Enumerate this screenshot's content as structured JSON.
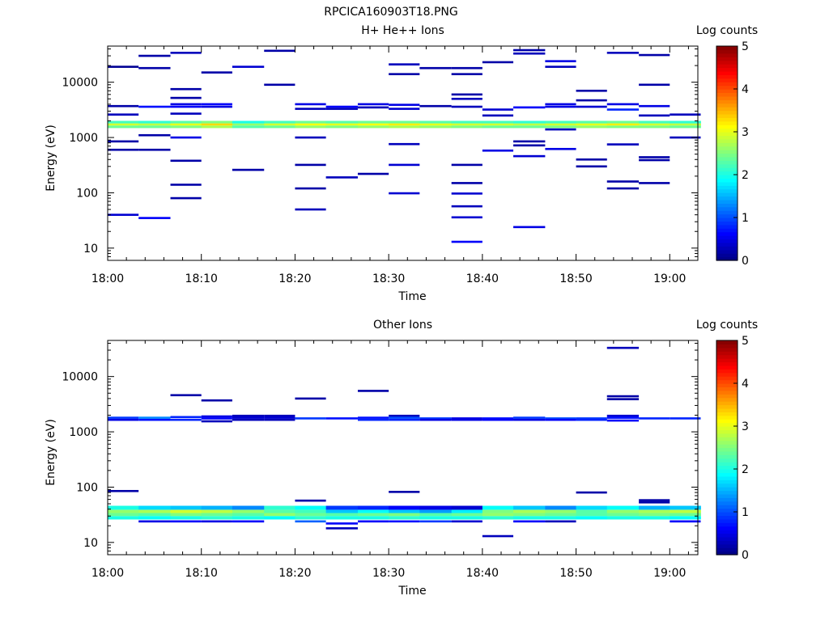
{
  "figure_title": "RPCICA160903T18.PNG",
  "colormap": [
    "#00007f",
    "#0000ff",
    "#007fff",
    "#00ffff",
    "#7fff7f",
    "#ffff00",
    "#ff7f00",
    "#ff0000",
    "#7f0000"
  ],
  "chart_data": [
    {
      "type": "heatmap",
      "title": "H+ He++ Ions",
      "xlabel": "Time",
      "ylabel": "Energy (eV)",
      "colorbar_label": "Log counts",
      "colorbar_range": [
        0,
        5
      ],
      "colorbar_ticks": [
        "0",
        "1",
        "2",
        "3",
        "4",
        "5"
      ],
      "x_range_min": [
        0,
        63
      ],
      "x_ticks_min": [
        0,
        10,
        20,
        30,
        40,
        50,
        60
      ],
      "x_tick_labels": [
        "18:00",
        "18:10",
        "18:20",
        "18:30",
        "18:40",
        "18:50",
        "19:00"
      ],
      "y_scale": "log",
      "y_range": [
        6,
        45000
      ],
      "y_ticks": [
        10,
        100,
        1000,
        10000
      ],
      "y_tick_labels": [
        "10",
        "100",
        "1000",
        "10000"
      ],
      "time_bins_min": [
        [
          0,
          3.3
        ],
        [
          3.3,
          6.7
        ],
        [
          6.7,
          10
        ],
        [
          10,
          13.3
        ],
        [
          13.3,
          16.7
        ],
        [
          16.7,
          20
        ],
        [
          20,
          23.3
        ],
        [
          23.3,
          26.7
        ],
        [
          26.7,
          30
        ],
        [
          30,
          33.3
        ],
        [
          33.3,
          36.7
        ],
        [
          36.7,
          40
        ],
        [
          40,
          43.3
        ],
        [
          43.3,
          46.7
        ],
        [
          46.7,
          50
        ],
        [
          50,
          53.3
        ],
        [
          53.3,
          56.7
        ],
        [
          56.7,
          60
        ],
        [
          60,
          63.3
        ]
      ],
      "band": {
        "e_low": 1480,
        "e_high": 2000,
        "rows": [
          {
            "e_low": 1480,
            "e_high": 1650,
            "values": [
              2.4,
              2.4,
              2.5,
              2.7,
              2.3,
              2.4,
              2.6,
              2.5,
              2.6,
              2.7,
              2.6,
              2.5,
              2.4,
              2.4,
              2.5,
              2.6,
              2.5,
              2.5,
              2.4
            ]
          },
          {
            "e_low": 1650,
            "e_high": 1800,
            "values": [
              2.9,
              2.8,
              3.0,
              3.3,
              2.6,
              2.9,
              3.1,
              3.0,
              3.1,
              3.2,
              3.0,
              2.9,
              2.9,
              2.8,
              2.9,
              3.0,
              3.2,
              2.9,
              2.8
            ]
          },
          {
            "e_low": 1800,
            "e_high": 2000,
            "values": [
              2.2,
              2.1,
              2.3,
              2.5,
              2.0,
              2.2,
              2.4,
              2.3,
              2.4,
              2.4,
              2.3,
              2.2,
              2.2,
              2.1,
              2.2,
              2.3,
              2.4,
              2.2,
              2.1
            ]
          }
        ]
      },
      "cells": [
        [
          0,
          19000,
          0.1
        ],
        [
          0,
          3700,
          0.2
        ],
        [
          0,
          2600,
          0.3
        ],
        [
          0,
          850,
          0.2
        ],
        [
          0,
          600,
          0.2
        ],
        [
          0,
          40,
          0.4
        ],
        [
          1,
          30000,
          0.2
        ],
        [
          1,
          18000,
          0.2
        ],
        [
          1,
          3600,
          0.7
        ],
        [
          1,
          1100,
          0.2
        ],
        [
          1,
          600,
          0.2
        ],
        [
          1,
          35,
          0.6
        ],
        [
          2,
          34000,
          0.3
        ],
        [
          2,
          7500,
          0.2
        ],
        [
          2,
          5200,
          0.2
        ],
        [
          2,
          4000,
          0.5
        ],
        [
          2,
          3600,
          0.6
        ],
        [
          2,
          2700,
          0.3
        ],
        [
          2,
          1000,
          0.5
        ],
        [
          2,
          380,
          0.2
        ],
        [
          2,
          140,
          0.2
        ],
        [
          2,
          80,
          0.2
        ],
        [
          3,
          15000,
          0.2
        ],
        [
          3,
          4000,
          0.6
        ],
        [
          3,
          3600,
          0.5
        ],
        [
          4,
          19000,
          0.4
        ],
        [
          4,
          260,
          0.2
        ],
        [
          5,
          37000,
          0.2
        ],
        [
          5,
          9000,
          0.2
        ],
        [
          6,
          4000,
          0.5
        ],
        [
          6,
          3300,
          0.3
        ],
        [
          6,
          1000,
          0.3
        ],
        [
          6,
          320,
          0.2
        ],
        [
          6,
          120,
          0.2
        ],
        [
          6,
          50,
          0.3
        ],
        [
          7,
          3600,
          0.6
        ],
        [
          7,
          3300,
          0.3
        ],
        [
          7,
          190,
          0.3
        ],
        [
          8,
          4000,
          0.5
        ],
        [
          8,
          3500,
          0.3
        ],
        [
          8,
          220,
          0.2
        ],
        [
          9,
          21000,
          0.3
        ],
        [
          9,
          14000,
          0.2
        ],
        [
          9,
          3900,
          0.5
        ],
        [
          9,
          3300,
          0.4
        ],
        [
          9,
          760,
          0.3
        ],
        [
          9,
          320,
          0.4
        ],
        [
          9,
          98,
          0.4
        ],
        [
          10,
          18000,
          0.2
        ],
        [
          10,
          3700,
          0.2
        ],
        [
          11,
          18000,
          0.2
        ],
        [
          11,
          14000,
          0.2
        ],
        [
          11,
          6000,
          0.2
        ],
        [
          11,
          5000,
          0.3
        ],
        [
          11,
          3600,
          0.3
        ],
        [
          11,
          320,
          0.2
        ],
        [
          11,
          150,
          0.2
        ],
        [
          11,
          97,
          0.4
        ],
        [
          11,
          57,
          0.3
        ],
        [
          11,
          36,
          0.4
        ],
        [
          11,
          13,
          0.6
        ],
        [
          12,
          23000,
          0.2
        ],
        [
          12,
          3200,
          0.4
        ],
        [
          12,
          2500,
          0.3
        ],
        [
          12,
          580,
          0.5
        ],
        [
          13,
          38000,
          0.2
        ],
        [
          13,
          33000,
          0.3
        ],
        [
          13,
          3500,
          0.6
        ],
        [
          13,
          850,
          0.2
        ],
        [
          13,
          720,
          0.2
        ],
        [
          13,
          460,
          0.4
        ],
        [
          13,
          24,
          0.5
        ],
        [
          14,
          24000,
          0.5
        ],
        [
          14,
          19000,
          0.3
        ],
        [
          14,
          4000,
          0.5
        ],
        [
          14,
          3600,
          0.5
        ],
        [
          14,
          1400,
          0.3
        ],
        [
          14,
          620,
          0.5
        ],
        [
          15,
          7000,
          0.2
        ],
        [
          15,
          4700,
          0.2
        ],
        [
          15,
          3600,
          0.4
        ],
        [
          15,
          400,
          0.2
        ],
        [
          15,
          300,
          0.2
        ],
        [
          16,
          34000,
          0.3
        ],
        [
          16,
          4000,
          0.5
        ],
        [
          16,
          3200,
          0.8
        ],
        [
          16,
          750,
          0.3
        ],
        [
          16,
          160,
          0.2
        ],
        [
          16,
          120,
          0.2
        ],
        [
          17,
          31000,
          0.2
        ],
        [
          17,
          9000,
          0.2
        ],
        [
          17,
          3700,
          0.5
        ],
        [
          17,
          2500,
          0.3
        ],
        [
          17,
          440,
          0.2
        ],
        [
          17,
          390,
          0.2
        ],
        [
          17,
          150,
          0.2
        ],
        [
          18,
          2600,
          0.3
        ],
        [
          18,
          1000,
          0.3
        ]
      ]
    },
    {
      "type": "heatmap",
      "title": "Other Ions",
      "xlabel": "Time",
      "ylabel": "Energy (eV)",
      "colorbar_label": "Log counts",
      "colorbar_range": [
        0,
        5
      ],
      "colorbar_ticks": [
        "0",
        "1",
        "2",
        "3",
        "4",
        "5"
      ],
      "x_range_min": [
        0,
        63
      ],
      "x_ticks_min": [
        0,
        10,
        20,
        30,
        40,
        50,
        60
      ],
      "x_tick_labels": [
        "18:00",
        "18:10",
        "18:20",
        "18:30",
        "18:40",
        "18:50",
        "19:00"
      ],
      "y_scale": "log",
      "y_range": [
        6,
        45000
      ],
      "y_ticks": [
        10,
        100,
        1000,
        10000
      ],
      "y_tick_labels": [
        "10",
        "100",
        "1000",
        "10000"
      ],
      "time_bins_min": [
        [
          0,
          3.3
        ],
        [
          3.3,
          6.7
        ],
        [
          6.7,
          10
        ],
        [
          10,
          13.3
        ],
        [
          13.3,
          16.7
        ],
        [
          16.7,
          20
        ],
        [
          20,
          23.3
        ],
        [
          23.3,
          26.7
        ],
        [
          26.7,
          30
        ],
        [
          30,
          33.3
        ],
        [
          33.3,
          36.7
        ],
        [
          36.7,
          40
        ],
        [
          40,
          43.3
        ],
        [
          43.3,
          46.7
        ],
        [
          46.7,
          50
        ],
        [
          50,
          53.3
        ],
        [
          53.3,
          56.7
        ],
        [
          56.7,
          60
        ],
        [
          60,
          63.3
        ]
      ],
      "band": {
        "e_low": 26,
        "e_high": 46,
        "rows": [
          {
            "e_low": 26,
            "e_high": 30,
            "values": [
              2.0,
              1.9,
              2.0,
              2.1,
              2.0,
              1.9,
              2.1,
              2.0,
              2.0,
              2.1,
              2.0,
              2.0,
              2.1,
              2.0,
              2.0,
              1.9,
              2.0,
              2.0,
              1.9
            ]
          },
          {
            "e_low": 30,
            "e_high": 34,
            "values": [
              2.4,
              2.3,
              2.5,
              2.4,
              2.3,
              2.6,
              2.4,
              2.3,
              2.4,
              2.5,
              2.3,
              2.4,
              2.6,
              2.5,
              2.4,
              2.3,
              2.4,
              2.5,
              2.4
            ]
          },
          {
            "e_low": 34,
            "e_high": 39,
            "values": [
              2.6,
              2.7,
              2.9,
              2.8,
              2.6,
              2.3,
              2.2,
              1.6,
              1.9,
              1.6,
              1.4,
              1.8,
              2.5,
              2.7,
              2.6,
              2.3,
              2.6,
              2.7,
              2.8
            ]
          },
          {
            "e_low": 39,
            "e_high": 46,
            "values": [
              2.0,
              1.7,
              1.6,
              1.5,
              1.3,
              2.1,
              1.9,
              0.9,
              0.8,
              0.6,
              0.5,
              0.4,
              1.9,
              1.6,
              1.3,
              1.7,
              1.9,
              1.5,
              1.6
            ]
          }
        ]
      },
      "cells": [
        [
          0,
          1800,
          0.9
        ],
        [
          0,
          1650,
          0.5
        ],
        [
          0,
          85,
          0.2
        ],
        [
          1,
          1800,
          1.3
        ],
        [
          1,
          1650,
          0.7
        ],
        [
          1,
          24,
          0.5
        ],
        [
          2,
          4600,
          0.2
        ],
        [
          2,
          1850,
          0.8
        ],
        [
          2,
          1650,
          0.8
        ],
        [
          2,
          24,
          0.6
        ],
        [
          3,
          3700,
          0.2
        ],
        [
          3,
          1900,
          0.5
        ],
        [
          3,
          1750,
          0.6
        ],
        [
          3,
          1550,
          0.3
        ],
        [
          3,
          24,
          0.5
        ],
        [
          4,
          1950,
          0.3
        ],
        [
          4,
          1800,
          0.4
        ],
        [
          4,
          1650,
          0.3
        ],
        [
          4,
          24,
          0.6
        ],
        [
          5,
          1950,
          0.3
        ],
        [
          5,
          1800,
          0.4
        ],
        [
          5,
          1650,
          0.3
        ],
        [
          6,
          4000,
          0.2
        ],
        [
          6,
          1750,
          0.9
        ],
        [
          6,
          57,
          0.2
        ],
        [
          6,
          24,
          1.1
        ],
        [
          7,
          1750,
          0.7
        ],
        [
          7,
          18,
          0.3
        ],
        [
          7,
          22,
          0.6
        ],
        [
          8,
          5500,
          0.2
        ],
        [
          8,
          1800,
          0.7
        ],
        [
          8,
          1650,
          0.8
        ],
        [
          8,
          24,
          0.6
        ],
        [
          9,
          1950,
          0.3
        ],
        [
          9,
          1800,
          1.0
        ],
        [
          9,
          1650,
          0.8
        ],
        [
          9,
          82,
          0.2
        ],
        [
          9,
          24,
          0.7
        ],
        [
          10,
          1750,
          0.9
        ],
        [
          10,
          1650,
          0.5
        ],
        [
          10,
          24,
          0.9
        ],
        [
          11,
          1750,
          0.5
        ],
        [
          11,
          1650,
          0.5
        ],
        [
          11,
          24,
          0.4
        ],
        [
          12,
          1750,
          0.7
        ],
        [
          12,
          1650,
          0.6
        ],
        [
          12,
          13,
          0.3
        ],
        [
          13,
          1800,
          0.9
        ],
        [
          13,
          1650,
          0.5
        ],
        [
          13,
          24,
          0.6
        ],
        [
          14,
          1750,
          1.0
        ],
        [
          14,
          1650,
          0.6
        ],
        [
          14,
          24,
          0.3
        ],
        [
          15,
          1750,
          0.9
        ],
        [
          15,
          1650,
          0.8
        ],
        [
          15,
          80,
          0.2
        ],
        [
          16,
          33000,
          0.3
        ],
        [
          16,
          4400,
          0.2
        ],
        [
          16,
          3900,
          0.2
        ],
        [
          16,
          1950,
          0.4
        ],
        [
          16,
          1800,
          0.7
        ],
        [
          16,
          1600,
          0.6
        ],
        [
          17,
          1750,
          0.8
        ],
        [
          17,
          58,
          0.2
        ],
        [
          17,
          53,
          0.2
        ],
        [
          18,
          1750,
          0.8
        ],
        [
          18,
          24,
          0.6
        ]
      ]
    }
  ]
}
